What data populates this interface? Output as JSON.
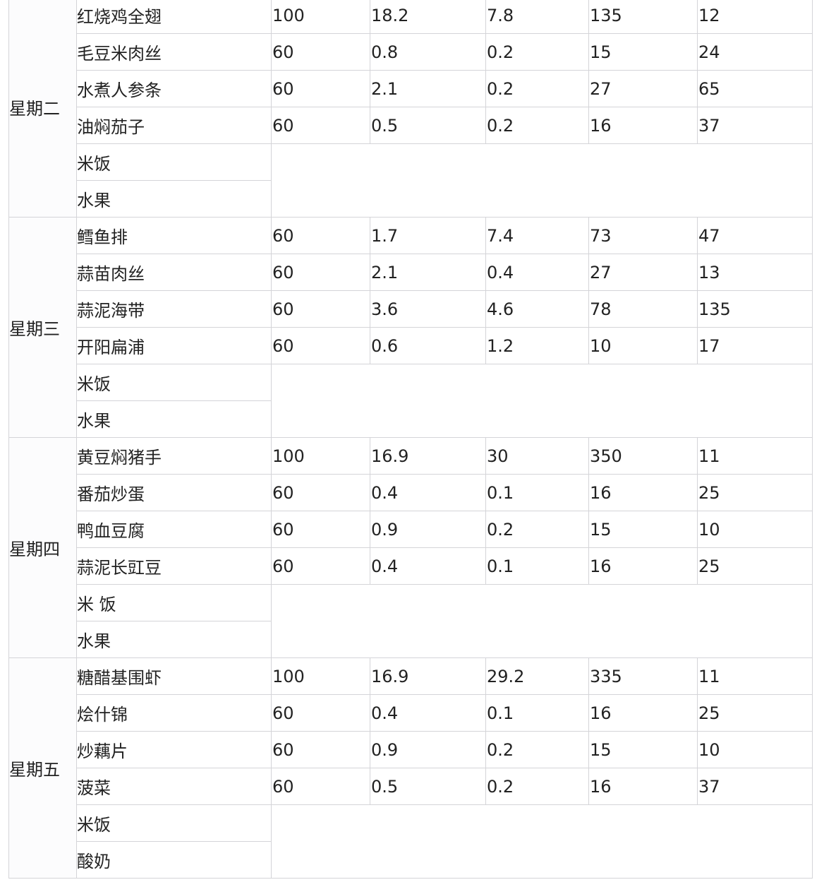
{
  "groups": [
    {
      "day": "星期二",
      "dishes": [
        {
          "name": "红烧鸡全翅",
          "values": [
            "100",
            "18.2",
            "7.8",
            "135",
            "12"
          ]
        },
        {
          "name": "毛豆米肉丝",
          "values": [
            "60",
            "0.8",
            "0.2",
            "15",
            "24"
          ]
        },
        {
          "name": "水煮人参条",
          "values": [
            "60",
            "2.1",
            "0.2",
            "27",
            "65"
          ]
        },
        {
          "name": "油焖茄子",
          "values": [
            "60",
            "0.5",
            "0.2",
            "16",
            "37"
          ]
        }
      ],
      "extras": [
        "米饭",
        "水果"
      ]
    },
    {
      "day": "星期三",
      "dishes": [
        {
          "name": "鳕鱼排",
          "values": [
            "60",
            "1.7",
            "7.4",
            "73",
            "47"
          ]
        },
        {
          "name": "蒜苗肉丝",
          "values": [
            "60",
            "2.1",
            "0.4",
            "27",
            "13"
          ]
        },
        {
          "name": "蒜泥海带",
          "values": [
            "60",
            "3.6",
            "4.6",
            "78",
            "135"
          ]
        },
        {
          "name": "开阳扁浦",
          "values": [
            "60",
            "0.6",
            "1.2",
            "10",
            "17"
          ]
        }
      ],
      "extras": [
        "米饭",
        "水果"
      ]
    },
    {
      "day": "星期四",
      "dishes": [
        {
          "name": "黄豆焖猪手",
          "values": [
            "100",
            "16.9",
            "30",
            "350",
            "11"
          ]
        },
        {
          "name": "番茄炒蛋",
          "values": [
            "60",
            "0.4",
            "0.1",
            "16",
            "25"
          ]
        },
        {
          "name": "鸭血豆腐",
          "values": [
            "60",
            "0.9",
            "0.2",
            "15",
            "10"
          ]
        },
        {
          "name": "蒜泥长豇豆",
          "values": [
            "60",
            "0.4",
            "0.1",
            "16",
            "25"
          ]
        }
      ],
      "extras": [
        "米 饭",
        "水果"
      ]
    },
    {
      "day": "星期五",
      "dishes": [
        {
          "name": "糖醋基围虾",
          "values": [
            "100",
            "16.9",
            "29.2",
            "335",
            "11"
          ]
        },
        {
          "name": "烩什锦",
          "values": [
            "60",
            "0.4",
            "0.1",
            "16",
            "25"
          ]
        },
        {
          "name": "炒藕片",
          "values": [
            "60",
            "0.9",
            "0.2",
            "15",
            "10"
          ]
        },
        {
          "name": "菠菜",
          "values": [
            "60",
            "0.5",
            "0.2",
            "16",
            "37"
          ]
        }
      ],
      "extras": [
        "米饭",
        "酸奶"
      ]
    }
  ]
}
